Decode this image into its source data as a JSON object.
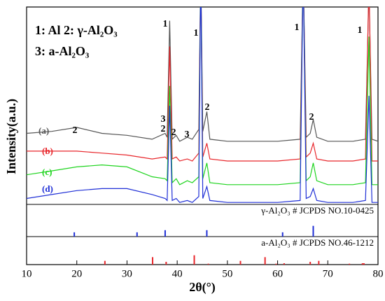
{
  "chart_data": {
    "type": "line",
    "legend_lines": [
      "1: Al  2: γ-Al₂O₃",
      "3: a-Al₂O₃"
    ],
    "xlabel": "2θ(°)",
    "ylabel": "Intensity(a.u.)",
    "xlim": [
      10,
      80
    ],
    "xticks": [
      10,
      20,
      30,
      40,
      50,
      60,
      70,
      80
    ],
    "ylim": [
      0,
      100
    ],
    "x": [
      10,
      15,
      20,
      25,
      30,
      35,
      37.6,
      38.0,
      38.5,
      39.0,
      39.8,
      40.5,
      42.0,
      43.0,
      44.3,
      44.7,
      45.1,
      45.9,
      46.5,
      50,
      55,
      60,
      64.5,
      65.1,
      65.7,
      66.5,
      67.1,
      67.8,
      70,
      75,
      77.5,
      78.2,
      78.8,
      80
    ],
    "series": [
      {
        "name": "(a)",
        "color": "#555555",
        "values": [
          36,
          37,
          39,
          36,
          35,
          33,
          36,
          34,
          93,
          33,
          35,
          32,
          34,
          33,
          38,
          120,
          37,
          47,
          33,
          32,
          32,
          32,
          33,
          120,
          34,
          36,
          43,
          34,
          32,
          32,
          33,
          110,
          33,
          32
        ]
      },
      {
        "name": "(b)",
        "color": "#e8262b",
        "values": [
          27,
          27,
          27,
          26,
          25,
          23,
          24,
          23,
          80,
          23,
          24,
          22,
          23,
          22,
          26,
          120,
          24,
          31,
          23,
          22,
          22,
          22,
          23,
          120,
          24,
          26,
          31,
          23,
          22,
          22,
          23,
          115,
          22,
          22
        ]
      },
      {
        "name": "(c)",
        "color": "#1ed41e",
        "values": [
          15,
          17,
          19,
          20,
          19,
          14,
          13,
          12,
          60,
          11,
          13,
          10,
          12,
          11,
          14,
          120,
          13,
          21,
          11,
          10,
          10,
          10,
          11,
          120,
          12,
          14,
          21,
          12,
          10,
          10,
          11,
          85,
          10,
          10
        ]
      },
      {
        "name": "(d)",
        "color": "#1f2fd6",
        "values": [
          3,
          5,
          7,
          8,
          8,
          5,
          3,
          2,
          50,
          2,
          3,
          1,
          2,
          1,
          4,
          120,
          3,
          9,
          2,
          1,
          1,
          1,
          2,
          120,
          3,
          4,
          8,
          2,
          1,
          1,
          2,
          55,
          1,
          1
        ]
      }
    ],
    "annotations": [
      "1",
      "1",
      "1",
      "1",
      "2",
      "3",
      "2",
      "2",
      "3",
      "2",
      "2"
    ],
    "references": [
      {
        "label": "γ-Al₂O₃ # JCPDS NO.10-0425",
        "color": "#1f2fd6",
        "ylim": [
          0,
          300
        ],
        "positions": [
          19.5,
          32.0,
          37.6,
          45.9,
          61.0,
          67.1
        ],
        "intensities": [
          40,
          40,
          60,
          60,
          40,
          100
        ]
      },
      {
        "label": "a-Al₂O₃ # JCPDS NO.46-1212",
        "color": "#e8262b",
        "ylim": [
          0,
          300
        ],
        "positions": [
          25.6,
          35.1,
          37.8,
          43.4,
          46.2,
          52.6,
          57.5,
          59.7,
          61.3,
          66.5,
          68.2,
          74.3,
          76.9,
          77.2
        ],
        "intensities": [
          40,
          80,
          30,
          100,
          10,
          40,
          80,
          10,
          15,
          30,
          40,
          10,
          15,
          15
        ]
      }
    ]
  }
}
